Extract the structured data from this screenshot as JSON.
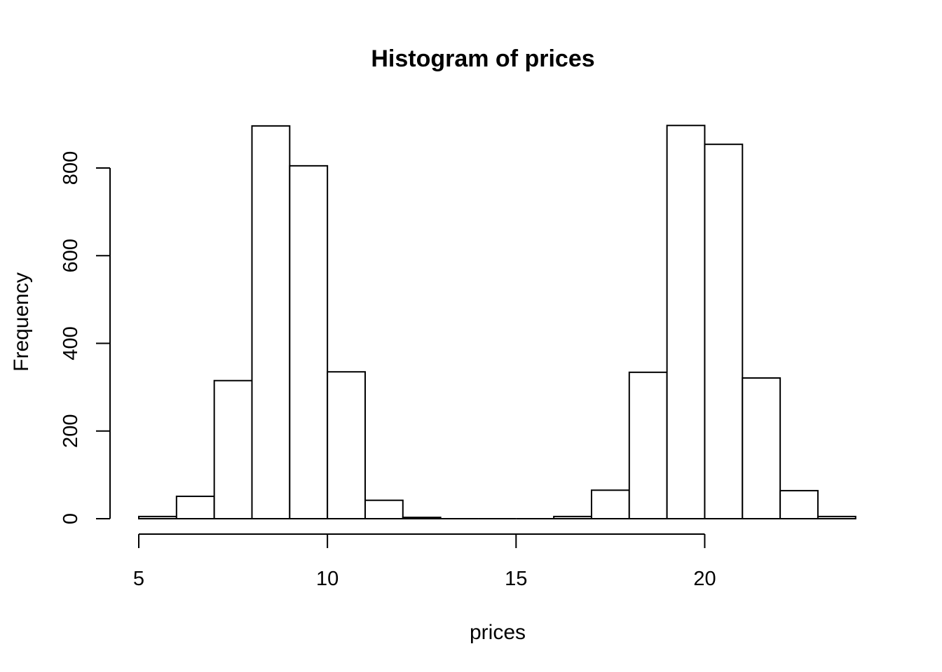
{
  "page": {
    "background_color": "#ffffff"
  },
  "chart_data": {
    "type": "bar",
    "subtype": "histogram",
    "title": "Histogram of prices",
    "xlabel": "prices",
    "ylabel": "Frequency",
    "bin_width": 1,
    "bin_edges": [
      5,
      6,
      7,
      8,
      9,
      10,
      11,
      12,
      13,
      14,
      15,
      16,
      17,
      18,
      19,
      20,
      21,
      22,
      23,
      24
    ],
    "counts": [
      5,
      51,
      315,
      896,
      805,
      335,
      42,
      3,
      0,
      0,
      0,
      5,
      65,
      334,
      897,
      854,
      321,
      64,
      5
    ],
    "x_ticks": [
      5,
      10,
      15,
      20
    ],
    "y_ticks": [
      0,
      200,
      400,
      600,
      800
    ],
    "xlim": [
      5,
      24
    ],
    "ylim": [
      0,
      900
    ],
    "grid": false,
    "legend": "none",
    "bar_fill": "#ffffff",
    "bar_stroke": "#000000",
    "axis_color": "#000000",
    "text_color": "#000000"
  }
}
